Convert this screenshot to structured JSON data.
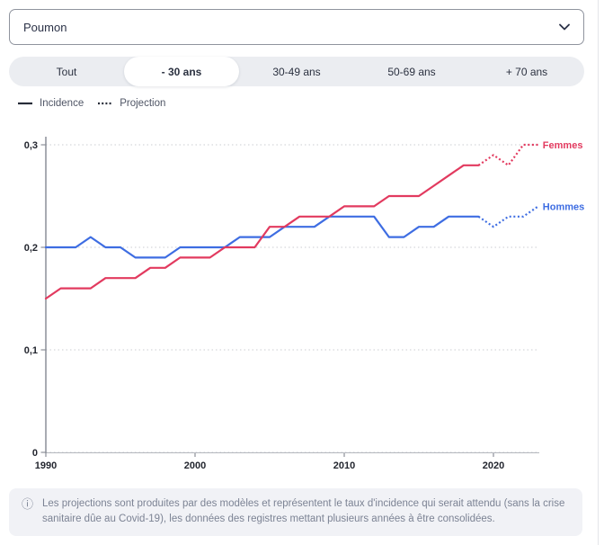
{
  "select": {
    "value": "Poumon"
  },
  "tabs": {
    "items": [
      {
        "label": "Tout",
        "active": false
      },
      {
        "label": "- 30 ans",
        "active": true
      },
      {
        "label": "30-49 ans",
        "active": false
      },
      {
        "label": "50-69 ans",
        "active": false
      },
      {
        "label": "+ 70 ans",
        "active": false
      }
    ]
  },
  "legend": {
    "items": [
      {
        "label": "Incidence",
        "style": "solid"
      },
      {
        "label": "Projection",
        "style": "dotted"
      }
    ]
  },
  "chart_data": {
    "type": "line",
    "title": "",
    "xlabel": "",
    "ylabel": "",
    "x_start": 1990,
    "x_end": 2023,
    "projection_from": 2019,
    "ylim": [
      0,
      0.3
    ],
    "grid": "horizontal-dotted",
    "yticks": [
      {
        "v": 0.0,
        "label": "0"
      },
      {
        "v": 0.1,
        "label": "0,1"
      },
      {
        "v": 0.2,
        "label": "0,2"
      },
      {
        "v": 0.3,
        "label": "0,3"
      }
    ],
    "xticks": [
      {
        "v": 1990,
        "label": "1990"
      },
      {
        "v": 2000,
        "label": "2000"
      },
      {
        "v": 2010,
        "label": "2010"
      },
      {
        "v": 2020,
        "label": "2020"
      }
    ],
    "series": [
      {
        "name": "Femmes",
        "color": "#e23a5f",
        "incidence_years": "1990-2019",
        "incidence": [
          0.15,
          0.16,
          0.16,
          0.16,
          0.17,
          0.17,
          0.17,
          0.18,
          0.18,
          0.19,
          0.19,
          0.19,
          0.2,
          0.2,
          0.2,
          0.22,
          0.22,
          0.23,
          0.23,
          0.23,
          0.24,
          0.24,
          0.24,
          0.25,
          0.25,
          0.25,
          0.26,
          0.27,
          0.28,
          0.28
        ],
        "projection_years": "2019-2023",
        "projection": [
          0.28,
          0.29,
          0.28,
          0.3,
          0.3
        ]
      },
      {
        "name": "Hommes",
        "color": "#3e6de2",
        "incidence_years": "1990-2019",
        "incidence": [
          0.2,
          0.2,
          0.2,
          0.21,
          0.2,
          0.2,
          0.19,
          0.19,
          0.19,
          0.2,
          0.2,
          0.2,
          0.2,
          0.21,
          0.21,
          0.21,
          0.22,
          0.22,
          0.22,
          0.23,
          0.23,
          0.23,
          0.23,
          0.21,
          0.21,
          0.22,
          0.22,
          0.23,
          0.23,
          0.23
        ],
        "projection_years": "2019-2023",
        "projection": [
          0.23,
          0.22,
          0.23,
          0.23,
          0.24
        ]
      }
    ]
  },
  "note": {
    "icon": "info",
    "text": "Les projections sont produites par des modèles et représentent le taux d'incidence qui serait attendu (sans la crise sanitaire dûe au Covid-19), les données des registres mettant plusieurs années à être consolidées."
  },
  "colors": {
    "femmes": "#e23a5f",
    "hommes": "#3e6de2",
    "axis": "#8b8f98",
    "grid": "#cbcdd2",
    "segmented_bg": "#ebedf1",
    "note_bg": "#f1f2f6",
    "note_text": "#7c8394"
  }
}
